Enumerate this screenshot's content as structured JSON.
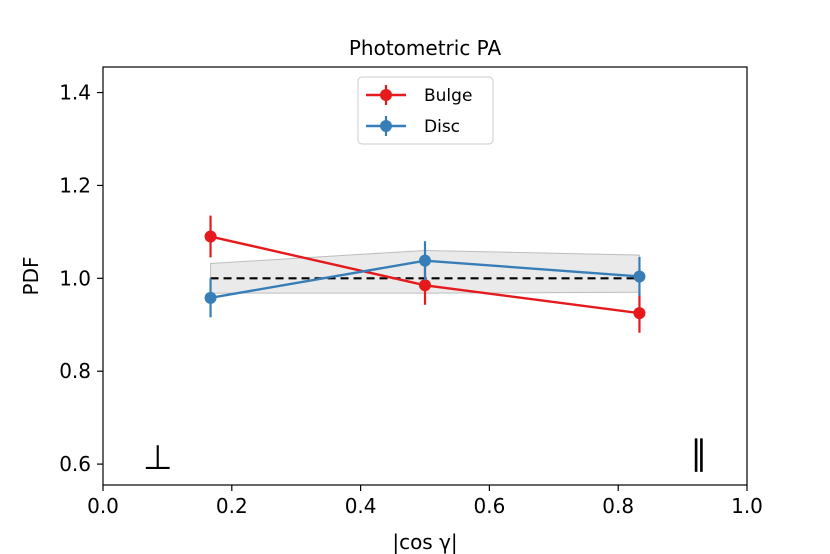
{
  "chart_data": {
    "type": "line",
    "title": "Photometric PA",
    "xlabel": "|cos γ|",
    "ylabel": "PDF",
    "xlim": [
      0.0,
      1.0
    ],
    "ylim": [
      0.555,
      1.455
    ],
    "xticks": [
      0.0,
      0.2,
      0.4,
      0.6,
      0.8,
      1.0
    ],
    "xtick_labels": [
      "0.0",
      "0.2",
      "0.4",
      "0.6",
      "0.8",
      "1.0"
    ],
    "yticks": [
      0.6,
      0.8,
      1.0,
      1.2,
      1.4
    ],
    "ytick_labels": [
      "0.6",
      "0.8",
      "1.0",
      "1.2",
      "1.4"
    ],
    "grid": false,
    "legend_position": "top-center",
    "series": [
      {
        "name": "Bulge",
        "color": "#e41a1c",
        "x": [
          0.167,
          0.5,
          0.833
        ],
        "y": [
          1.09,
          0.985,
          0.925
        ],
        "yerr": [
          0.045,
          0.042,
          0.042
        ]
      },
      {
        "name": "Disc",
        "color": "#377eb8",
        "x": [
          0.167,
          0.5,
          0.833
        ],
        "y": [
          0.958,
          1.038,
          1.004
        ],
        "yerr": [
          0.042,
          0.042,
          0.042
        ]
      }
    ],
    "reference_line": {
      "y": 1.0,
      "x": [
        0.167,
        0.833
      ],
      "style": "dashed",
      "color": "#000000"
    },
    "reference_band": {
      "x": [
        0.167,
        0.5,
        0.833
      ],
      "y_low": [
        0.968,
        0.968,
        0.97
      ],
      "y_high": [
        1.032,
        1.06,
        1.05
      ],
      "color": "#d9d9d9"
    },
    "annotations": [
      {
        "text": "⊥",
        "x": 0.085,
        "y": 0.615
      },
      {
        "text": "∥",
        "x": 0.925,
        "y": 0.625
      }
    ]
  }
}
